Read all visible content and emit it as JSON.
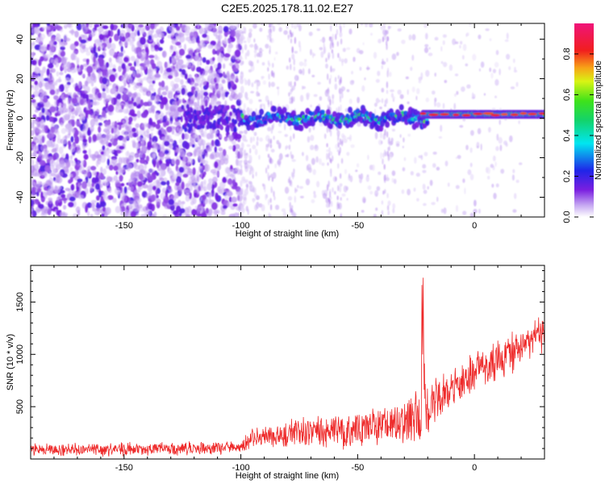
{
  "title": "C2E5.2025.178.11.02.E27",
  "colors": {
    "snr_line": "#ee2a2a",
    "axes": "#000000"
  },
  "chart_data": [
    {
      "type": "heatmap",
      "xlabel": "Height of straight line (km)",
      "ylabel": "Frequency (Hz)",
      "xlim": [
        -190,
        30
      ],
      "ylim": [
        -50,
        48
      ],
      "x_ticks": [
        -150,
        -100,
        -50,
        0
      ],
      "y_ticks": [
        -40,
        -20,
        0,
        20,
        40
      ],
      "colorbar": {
        "label": "Normalized spectral amplitude",
        "range": [
          0,
          0.95
        ],
        "ticks": [
          "0.0",
          "0.2",
          "0.4",
          "0.6",
          "0.8"
        ],
        "colormap": "rainbow (white-violet-blue-cyan-green-yellow-red-magenta)"
      },
      "features": [
        {
          "x_range": [
            -190,
            -100
          ],
          "frequency_range": [
            -50,
            48
          ],
          "amplitude_range": [
            0.02,
            0.2
          ],
          "description": "broadband noise"
        },
        {
          "x_range": [
            -100,
            -20
          ],
          "frequency_center": 0,
          "frequency_halfwidth": 5,
          "amplitude_range": [
            0.1,
            0.6
          ],
          "description": "narrow band"
        },
        {
          "x_range": [
            -22,
            30
          ],
          "frequency_center": 2,
          "frequency_halfwidth": 2,
          "amplitude_range": [
            0.5,
            0.95
          ],
          "description": "strong band"
        }
      ]
    },
    {
      "type": "line",
      "xlabel": "Height of straight line (km)",
      "ylabel": "SNR (10 * v/v)",
      "xlim": [
        -190,
        30
      ],
      "ylim": [
        0,
        1850
      ],
      "x_ticks": [
        -150,
        -100,
        -50,
        0
      ],
      "y_ticks": [
        500,
        1000,
        1500
      ],
      "series": [
        {
          "color": "#ee2a2a",
          "x": [
            -190,
            -150,
            -120,
            -100,
            -95,
            -80,
            -60,
            -50,
            -40,
            -30,
            -23,
            -22,
            -21,
            -20,
            -15,
            -10,
            -5,
            0,
            5,
            10,
            15,
            20,
            25,
            30
          ],
          "mean": [
            90,
            95,
            100,
            110,
            200,
            230,
            260,
            280,
            320,
            380,
            450,
            1000,
            600,
            450,
            620,
            650,
            720,
            820,
            900,
            960,
            1020,
            1070,
            1130,
            1220
          ],
          "spread": [
            70,
            75,
            75,
            80,
            140,
            160,
            180,
            200,
            230,
            260,
            280,
            850,
            300,
            260,
            260,
            260,
            250,
            250,
            240,
            230,
            220,
            210,
            200,
            200
          ]
        }
      ]
    }
  ]
}
